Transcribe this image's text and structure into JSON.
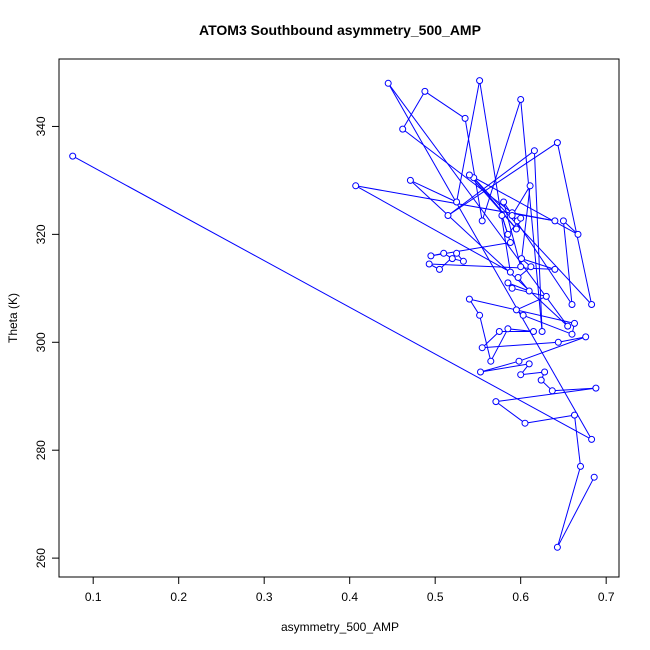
{
  "chart_data": {
    "type": "scatter",
    "title": "ATOM3 Southbound asymmetry_500_AMP",
    "xlabel": "asymmetry_500_AMP",
    "ylabel": "Theta (K)",
    "xlim": [
      0.06,
      0.715
    ],
    "ylim": [
      256.5,
      352.5
    ],
    "xticks": [
      0.1,
      0.2,
      0.3,
      0.4,
      0.5,
      0.6,
      0.7
    ],
    "xtick_labels": [
      "0.1",
      "0.2",
      "0.3",
      "0.4",
      "0.5",
      "0.6",
      "0.7"
    ],
    "yticks": [
      260,
      280,
      300,
      320,
      340
    ],
    "ytick_labels": [
      "260",
      "280",
      "300",
      "320",
      "340"
    ],
    "grid": false,
    "series_color": "#0000ff",
    "markers": "open-circle",
    "connected": true,
    "points": [
      [
        0.076,
        334.5
      ],
      [
        0.683,
        282.0
      ],
      [
        0.445,
        348.0
      ],
      [
        0.655,
        303.0
      ],
      [
        0.471,
        330.0
      ],
      [
        0.525,
        326.0
      ],
      [
        0.552,
        348.5
      ],
      [
        0.588,
        313.0
      ],
      [
        0.407,
        329.0
      ],
      [
        0.64,
        322.5
      ],
      [
        0.59,
        324.0
      ],
      [
        0.462,
        339.5
      ],
      [
        0.488,
        346.5
      ],
      [
        0.535,
        341.5
      ],
      [
        0.555,
        322.5
      ],
      [
        0.6,
        345.0
      ],
      [
        0.625,
        302.0
      ],
      [
        0.616,
        335.5
      ],
      [
        0.515,
        323.5
      ],
      [
        0.643,
        337.0
      ],
      [
        0.683,
        307.0
      ],
      [
        0.545,
        330.5
      ],
      [
        0.595,
        321.0
      ],
      [
        0.54,
        331.0
      ],
      [
        0.667,
        320.0
      ],
      [
        0.65,
        322.5
      ],
      [
        0.66,
        307.0
      ],
      [
        0.58,
        326.0
      ],
      [
        0.6,
        314.0
      ],
      [
        0.611,
        329.0
      ],
      [
        0.59,
        323.5
      ],
      [
        0.596,
        322.5
      ],
      [
        0.6,
        323.0
      ],
      [
        0.585,
        320.0
      ],
      [
        0.578,
        323.5
      ],
      [
        0.588,
        318.5
      ],
      [
        0.495,
        316.0
      ],
      [
        0.51,
        316.5
      ],
      [
        0.52,
        315.5
      ],
      [
        0.533,
        315.0
      ],
      [
        0.525,
        316.5
      ],
      [
        0.505,
        313.5
      ],
      [
        0.493,
        314.5
      ],
      [
        0.64,
        313.5
      ],
      [
        0.601,
        315.5
      ],
      [
        0.612,
        314.0
      ],
      [
        0.597,
        312.0
      ],
      [
        0.61,
        309.5
      ],
      [
        0.585,
        311.0
      ],
      [
        0.59,
        310.0
      ],
      [
        0.63,
        308.5
      ],
      [
        0.595,
        306.0
      ],
      [
        0.603,
        305.0
      ],
      [
        0.66,
        301.5
      ],
      [
        0.663,
        303.5
      ],
      [
        0.54,
        308.0
      ],
      [
        0.552,
        305.0
      ],
      [
        0.565,
        296.5
      ],
      [
        0.585,
        302.5
      ],
      [
        0.615,
        302.0
      ],
      [
        0.575,
        302.0
      ],
      [
        0.555,
        299.0
      ],
      [
        0.644,
        300.0
      ],
      [
        0.676,
        301.0
      ],
      [
        0.598,
        296.5
      ],
      [
        0.553,
        294.5
      ],
      [
        0.61,
        296.0
      ],
      [
        0.6,
        294.0
      ],
      [
        0.628,
        294.5
      ],
      [
        0.624,
        293.0
      ],
      [
        0.637,
        291.0
      ],
      [
        0.688,
        291.5
      ],
      [
        0.571,
        289.0
      ],
      [
        0.605,
        285.0
      ],
      [
        0.663,
        286.5
      ],
      [
        0.67,
        277.0
      ],
      [
        0.643,
        262.0
      ],
      [
        0.686,
        275.0
      ]
    ]
  }
}
